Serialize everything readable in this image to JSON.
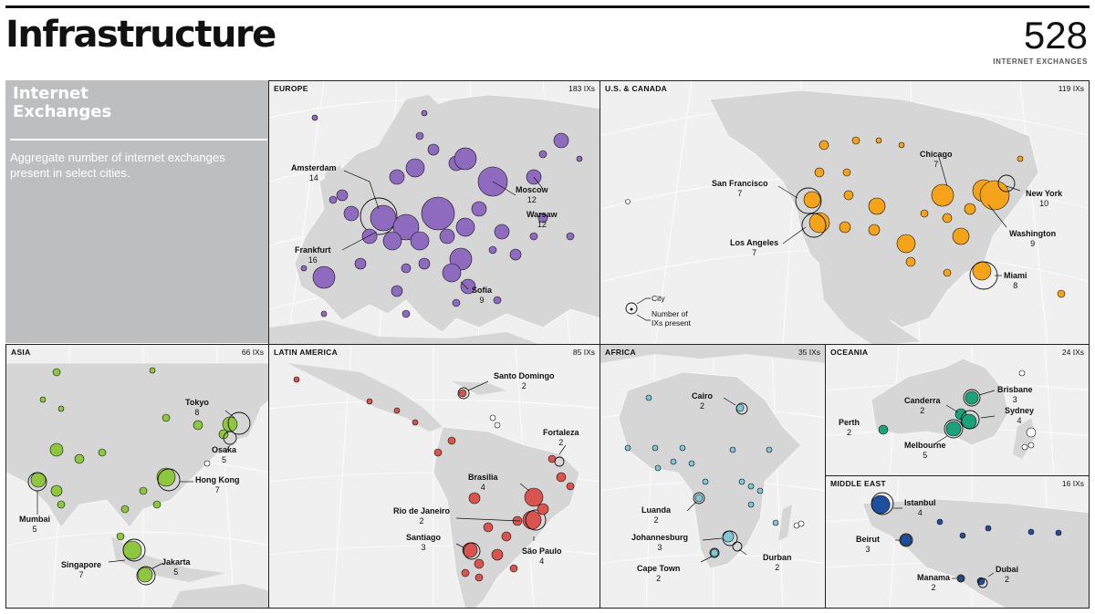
{
  "header": {
    "title": "Infrastructure",
    "total": "528",
    "total_label": "INTERNET EXCHANGES"
  },
  "intro": {
    "heading": "Internet\nExchanges",
    "description": "Aggregate number of internet exchanges present in select cities."
  },
  "legend": {
    "city": "City",
    "count": "Number of IXs present"
  },
  "colors": {
    "europe": "#8e6bbf",
    "us_canada": "#f5a31a",
    "asia": "#8fc63f",
    "latin_america": "#d9534f",
    "africa": "#7fc6d6",
    "oceania": "#1aa37a",
    "middle_east": "#1f4e9c"
  },
  "regions": [
    {
      "id": "europe",
      "name": "EUROPE",
      "count": "183 IXs",
      "labels": [
        {
          "city": "Amsterdam",
          "value": "14"
        },
        {
          "city": "Moscow",
          "value": "12"
        },
        {
          "city": "Warsaw",
          "value": "12"
        },
        {
          "city": "Frankfurt",
          "value": "16"
        },
        {
          "city": "Sofia",
          "value": "9"
        }
      ]
    },
    {
      "id": "us_canada",
      "name": "U.S. & CANADA",
      "count": "119 IXs",
      "labels": [
        {
          "city": "Chicago",
          "value": "7"
        },
        {
          "city": "San Francisco",
          "value": "7"
        },
        {
          "city": "New York",
          "value": "10"
        },
        {
          "city": "Los Angeles",
          "value": "7"
        },
        {
          "city": "Washington",
          "value": "9"
        },
        {
          "city": "Miami",
          "value": "8"
        }
      ]
    },
    {
      "id": "asia",
      "name": "ASIA",
      "count": "66 IXs",
      "labels": [
        {
          "city": "Tokyo",
          "value": "8"
        },
        {
          "city": "Osaka",
          "value": "5"
        },
        {
          "city": "Hong Kong",
          "value": "7"
        },
        {
          "city": "Mumbai",
          "value": "5"
        },
        {
          "city": "Singapore",
          "value": "7"
        },
        {
          "city": "Jakarta",
          "value": "5"
        }
      ]
    },
    {
      "id": "latin_america",
      "name": "LATIN AMERICA",
      "count": "85 IXs",
      "labels": [
        {
          "city": "Santo Domingo",
          "value": "2"
        },
        {
          "city": "Fortaleza",
          "value": "2"
        },
        {
          "city": "Brasilia",
          "value": "4"
        },
        {
          "city": "Rio de Janeiro",
          "value": "2"
        },
        {
          "city": "Santiago",
          "value": "3"
        },
        {
          "city": "São Paulo",
          "value": "4"
        }
      ]
    },
    {
      "id": "africa",
      "name": "AFRICA",
      "count": "35 IXs",
      "labels": [
        {
          "city": "Cairo",
          "value": "2"
        },
        {
          "city": "Luanda",
          "value": "2"
        },
        {
          "city": "Johannesburg",
          "value": "3"
        },
        {
          "city": "Cape Town",
          "value": "2"
        },
        {
          "city": "Durban",
          "value": "2"
        }
      ]
    },
    {
      "id": "oceania",
      "name": "OCEANIA",
      "count": "24 IXs",
      "labels": [
        {
          "city": "Brisbane",
          "value": "3"
        },
        {
          "city": "Canderra",
          "value": "2"
        },
        {
          "city": "Sydney",
          "value": "4"
        },
        {
          "city": "Perth",
          "value": "2"
        },
        {
          "city": "Melbourne",
          "value": "5"
        }
      ]
    },
    {
      "id": "middle_east",
      "name": "MIDDLE EAST",
      "count": "16 IXs",
      "labels": [
        {
          "city": "Istanbul",
          "value": "4"
        },
        {
          "city": "Beirut",
          "value": "3"
        },
        {
          "city": "Manama",
          "value": "2"
        },
        {
          "city": "Dubai",
          "value": "2"
        }
      ]
    }
  ]
}
